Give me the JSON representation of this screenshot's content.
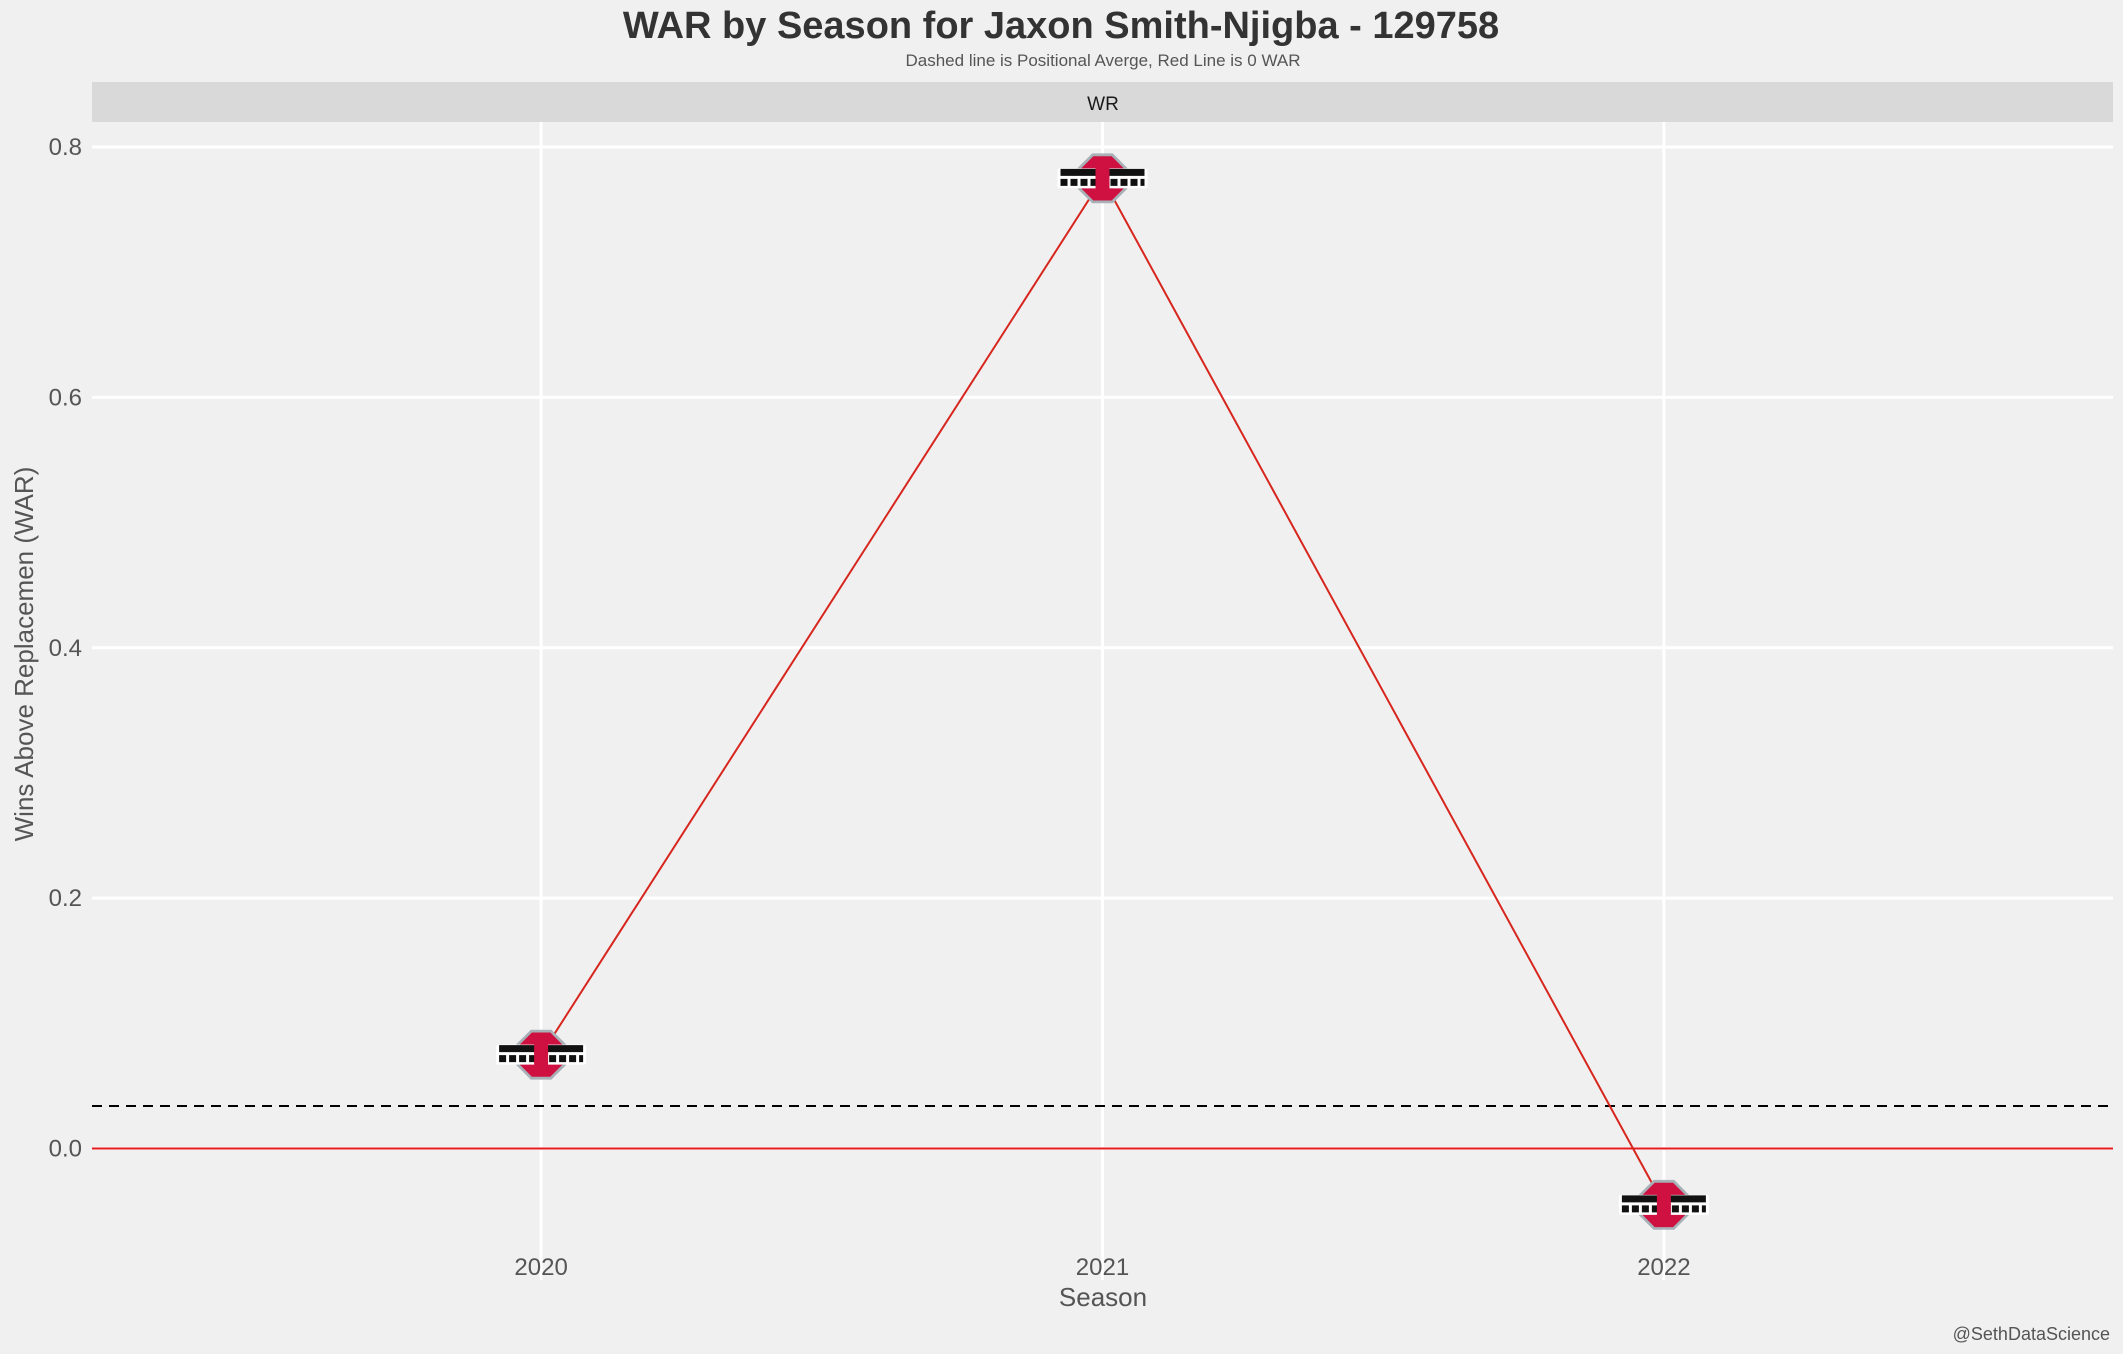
{
  "chart_data": {
    "type": "line",
    "title": "WAR by Season for Jaxon Smith-Njigba - 129758",
    "subtitle": "Dashed line is Positional Averge, Red Line is 0 WAR",
    "facet": "WR",
    "xlabel": "Season",
    "ylabel": "Wins Above Replacemen (WAR)",
    "caption": "@SethDataScience",
    "categories": [
      "2020",
      "2021",
      "2022"
    ],
    "series": [
      {
        "values": [
          0.075,
          0.775,
          -0.045
        ],
        "color": "#d7261e"
      }
    ],
    "point_marker": "ohio-state-logo",
    "y_ticks": [
      0.0,
      0.2,
      0.4,
      0.6,
      0.8
    ],
    "y_tick_labels": [
      "0.0",
      "0.2",
      "0.4",
      "0.6",
      "0.8"
    ],
    "ylim": [
      -0.105,
      0.82
    ],
    "positional_average": 0.034,
    "zero_line": 0.0,
    "grid": true,
    "colors": {
      "background": "#f0f0f0",
      "strip": "#d9d9d9",
      "grid": "#ffffff",
      "line": "#d7261e",
      "zero_line": "#e41a1c",
      "average_line": "#000000",
      "logo_red": "#ce1141",
      "logo_gray": "#a7b1b7"
    }
  }
}
